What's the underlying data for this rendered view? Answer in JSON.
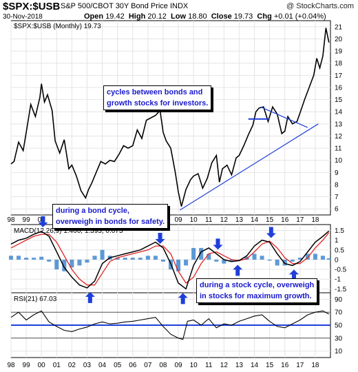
{
  "header": {
    "symbol": "$SPX:$USB",
    "description": "S&P 500/CBOT 30Y Bond Price INDX",
    "source": "@ StockCharts.com",
    "date": "30-Nov-2018",
    "open_label": "Open",
    "open": "19.42",
    "high_label": "High",
    "high": "20.12",
    "low_label": "Low",
    "low": "18.80",
    "close_label": "Close",
    "close": "19.73",
    "chg_label": "Chg",
    "chg": "+0.01 (+0.04%)"
  },
  "colors": {
    "price": "#000000",
    "trend": "#1f3fd8",
    "macd": "#000000",
    "signal": "#e02020",
    "histogram": "#2a78c8",
    "rsi_line": "#1f3fd8",
    "note_text": "#1a1acc",
    "arrow": "#1f3fd8"
  },
  "chart_data": [
    {
      "type": "line",
      "panel": "price",
      "legend": "$SPX:$USB (Monthly) 19.73",
      "ylim": [
        5.5,
        21.5
      ],
      "y_ticks": [
        6,
        7,
        8,
        9,
        10,
        11,
        12,
        13,
        14,
        15,
        16,
        17,
        18,
        19,
        20,
        21
      ],
      "x": [
        1998.0,
        1998.2,
        1998.5,
        1998.8,
        1999.0,
        1999.3,
        1999.6,
        1999.9,
        2000.0,
        2000.2,
        2000.4,
        2000.7,
        2000.9,
        2001.2,
        2001.5,
        2001.8,
        2002.0,
        2002.3,
        2002.6,
        2002.9,
        2003.1,
        2003.3,
        2003.6,
        2003.9,
        2004.2,
        2004.5,
        2004.8,
        2005.1,
        2005.4,
        2005.7,
        2006.0,
        2006.3,
        2006.6,
        2006.9,
        2007.2,
        2007.5,
        2007.8,
        2008.0,
        2008.2,
        2008.5,
        2008.8,
        2009.0,
        2009.2,
        2009.5,
        2009.8,
        2010.0,
        2010.3,
        2010.6,
        2010.9,
        2011.2,
        2011.5,
        2011.7,
        2011.9,
        2012.2,
        2012.5,
        2012.8,
        2013.0,
        2013.3,
        2013.6,
        2013.9,
        2014.1,
        2014.3,
        2014.6,
        2014.9,
        2015.2,
        2015.5,
        2015.8,
        2016.0,
        2016.2,
        2016.5,
        2016.8,
        2017.0,
        2017.3,
        2017.6,
        2017.9,
        2018.1,
        2018.3,
        2018.5,
        2018.7,
        2018.9
      ],
      "values": [
        9.7,
        9.9,
        11.5,
        10.8,
        12.3,
        14.6,
        13.6,
        15.2,
        16.3,
        14.8,
        15.4,
        14.1,
        11.6,
        10.6,
        11.7,
        9.3,
        9.6,
        8.7,
        7.5,
        6.9,
        7.6,
        8.1,
        9.0,
        9.9,
        9.7,
        10.0,
        9.9,
        10.5,
        11.2,
        11.0,
        11.2,
        12.5,
        11.8,
        13.3,
        13.5,
        13.7,
        14.1,
        12.3,
        11.6,
        11.0,
        9.0,
        7.4,
        6.2,
        7.6,
        8.4,
        8.7,
        8.9,
        7.7,
        8.5,
        9.8,
        10.4,
        8.2,
        9.3,
        9.6,
        8.8,
        10.2,
        10.4,
        11.2,
        12.1,
        12.9,
        14.0,
        14.3,
        14.4,
        13.2,
        14.4,
        13.8,
        12.2,
        12.4,
        13.6,
        13.0,
        13.2,
        13.9,
        15.0,
        16.0,
        17.0,
        18.4,
        17.6,
        18.6,
        20.9,
        19.7
      ],
      "trendlines": [
        {
          "from": [
            2009.1,
            5.9
          ],
          "to": [
            2018.2,
            13.0
          ]
        },
        {
          "from": [
            2014.4,
            14.4
          ],
          "to": [
            2017.5,
            12.7
          ]
        },
        {
          "from": [
            2013.6,
            13.4
          ],
          "to": [
            2015.0,
            13.4
          ]
        }
      ]
    },
    {
      "type": "line",
      "panel": "macd",
      "legend": "MACD(12,26,9) 1.466, 1.393, 0.073",
      "ylim": [
        -1.7,
        1.8
      ],
      "y_ticks": [
        1.5,
        1.0,
        0.5,
        0.0,
        -0.5,
        -1.0,
        -1.5
      ],
      "x": [
        1998.0,
        1998.5,
        1999.0,
        1999.5,
        2000.0,
        2000.5,
        2001.0,
        2001.5,
        2002.0,
        2002.5,
        2003.0,
        2003.5,
        2004.0,
        2004.5,
        2005.0,
        2005.5,
        2006.0,
        2006.5,
        2007.0,
        2007.5,
        2008.0,
        2008.5,
        2009.0,
        2009.5,
        2010.0,
        2010.5,
        2011.0,
        2011.5,
        2012.0,
        2012.5,
        2013.0,
        2013.5,
        2014.0,
        2014.5,
        2015.0,
        2015.5,
        2016.0,
        2016.5,
        2017.0,
        2017.5,
        2018.0,
        2018.5,
        2018.9
      ],
      "series": [
        {
          "values": [
            0.8,
            1.0,
            1.1,
            1.3,
            1.45,
            1.2,
            0.4,
            -0.4,
            -0.9,
            -1.3,
            -1.45,
            -1.1,
            -0.2,
            0.1,
            0.2,
            0.3,
            0.4,
            0.5,
            0.7,
            0.9,
            0.6,
            -0.2,
            -1.2,
            -1.5,
            -0.3,
            0.4,
            0.6,
            0.3,
            0.0,
            -0.1,
            -0.05,
            0.2,
            0.7,
            1.0,
            0.9,
            0.3,
            -0.2,
            -0.3,
            -0.1,
            0.4,
            0.9,
            1.2,
            1.47
          ]
        },
        {
          "values": [
            0.6,
            0.8,
            1.0,
            1.2,
            1.3,
            1.3,
            0.9,
            0.2,
            -0.5,
            -1.0,
            -1.3,
            -1.3,
            -0.7,
            -0.1,
            0.1,
            0.2,
            0.3,
            0.4,
            0.5,
            0.7,
            0.7,
            0.3,
            -0.6,
            -1.2,
            -0.9,
            -0.2,
            0.3,
            0.4,
            0.2,
            0.0,
            -0.05,
            0.05,
            0.4,
            0.8,
            0.95,
            0.6,
            0.1,
            -0.2,
            -0.2,
            0.1,
            0.6,
            1.0,
            1.39
          ]
        }
      ],
      "histogram": [
        0.2,
        0.2,
        0.1,
        0.1,
        0.15,
        -0.1,
        -0.5,
        -0.6,
        -0.4,
        -0.3,
        -0.15,
        0.2,
        0.5,
        0.2,
        0.1,
        0.1,
        0.1,
        0.1,
        0.2,
        0.2,
        -0.1,
        -0.5,
        -0.6,
        -0.3,
        0.6,
        0.6,
        0.3,
        -0.1,
        -0.2,
        -0.1,
        0.0,
        0.15,
        0.3,
        0.2,
        -0.05,
        -0.3,
        -0.3,
        -0.1,
        0.1,
        0.3,
        0.3,
        0.2,
        0.07
      ]
    },
    {
      "type": "line",
      "panel": "rsi",
      "legend": "RSI(21) 67.03",
      "ylim": [
        0,
        100
      ],
      "y_ticks": [
        90,
        70,
        50,
        30,
        10
      ],
      "reference_lines": [
        70,
        50,
        30
      ],
      "x": [
        1998.0,
        1998.5,
        1999.0,
        1999.5,
        2000.0,
        2000.5,
        2001.0,
        2001.5,
        2002.0,
        2002.5,
        2003.0,
        2003.5,
        2004.0,
        2004.5,
        2005.0,
        2005.5,
        2006.0,
        2006.5,
        2007.0,
        2007.5,
        2008.0,
        2008.5,
        2009.0,
        2009.3,
        2009.6,
        2010.0,
        2010.5,
        2011.0,
        2011.5,
        2012.0,
        2012.5,
        2013.0,
        2013.5,
        2014.0,
        2014.5,
        2015.0,
        2015.5,
        2016.0,
        2016.5,
        2017.0,
        2017.5,
        2018.0,
        2018.5,
        2018.9
      ],
      "values": [
        62,
        70,
        58,
        66,
        72,
        55,
        48,
        42,
        40,
        44,
        47,
        52,
        55,
        52,
        53,
        55,
        56,
        58,
        60,
        62,
        48,
        36,
        30,
        28,
        56,
        58,
        50,
        60,
        46,
        52,
        50,
        56,
        60,
        64,
        66,
        56,
        48,
        46,
        52,
        58,
        66,
        70,
        72,
        67
      ]
    }
  ],
  "x_axis": {
    "labels": [
      "98",
      "99",
      "00",
      "01",
      "02",
      "03",
      "04",
      "05",
      "06",
      "07",
      "08",
      "09",
      "10",
      "11",
      "12",
      "13",
      "14",
      "15",
      "16",
      "17",
      "18"
    ]
  },
  "annotations": [
    {
      "text": "cycles between bonds and\ngrowth stocks for investors."
    },
    {
      "text": "during a bond cycle,\noverweigh in bonds for safety."
    },
    {
      "text": "during a stock cycle, overweigh\nin stocks for maximum growth."
    }
  ],
  "arrows": [
    {
      "direction": "down",
      "x": 2000.1
    },
    {
      "direction": "up",
      "x": 2003.2
    },
    {
      "direction": "down",
      "x": 2007.8
    },
    {
      "direction": "up",
      "x": 2009.3
    },
    {
      "direction": "down",
      "x": 2011.6
    },
    {
      "direction": "up",
      "x": 2012.9
    },
    {
      "direction": "down",
      "x": 2015.1
    },
    {
      "direction": "up",
      "x": 2016.6
    }
  ]
}
